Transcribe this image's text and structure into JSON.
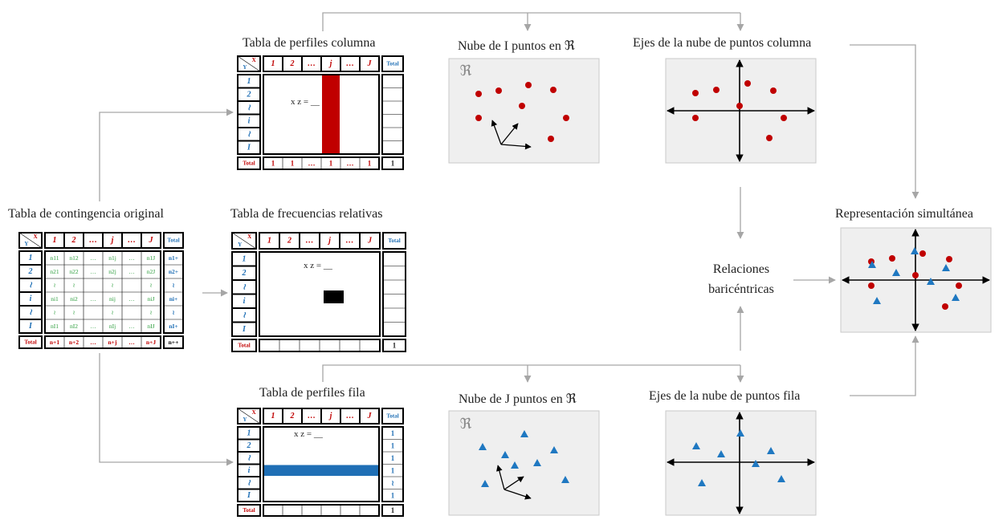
{
  "labels": {
    "tabla_perfiles_columna": "Tabla de perfiles columna",
    "nube_i": "Nube de I puntos en ℜ",
    "ejes_columna": "Ejes de la nube de puntos columna",
    "tabla_contingencia": "Tabla de contingencia original",
    "tabla_frecuencias": "Tabla de frecuencias relativas",
    "representacion": "Representación simultánea",
    "relaciones_1": "Relaciones",
    "relaciones_2": "baricéntricas",
    "tabla_perfiles_fila": "Tabla de perfiles fila",
    "nube_j": "Nube de J puntos en ℜ",
    "ejes_fila": "Ejes de la nube de puntos fila"
  },
  "table_common": {
    "x_letter": "X",
    "y_letter": "Y",
    "col_headers": [
      "1",
      "2",
      "…",
      "j",
      "…",
      "J"
    ],
    "row_headers": [
      "1",
      "2",
      "≀",
      "i",
      "≀",
      "I"
    ],
    "total_label": "Total",
    "formula": "x  z = __"
  },
  "contingency": {
    "cells": [
      [
        "n11",
        "n12",
        "…",
        "n1j",
        "…",
        "n1J"
      ],
      [
        "n21",
        "n22",
        "…",
        "n2j",
        "…",
        "n2J"
      ],
      [
        "≀",
        "≀",
        "",
        "≀",
        "",
        "≀"
      ],
      [
        "ni1",
        "ni2",
        "…",
        "nij",
        "…",
        "niJ"
      ],
      [
        "≀",
        "≀",
        "",
        "≀",
        "",
        "≀"
      ],
      [
        "nI1",
        "nI2",
        "…",
        "nIj",
        "…",
        "nIJ"
      ]
    ],
    "row_totals": [
      "n1+",
      "n2+",
      "≀",
      "ni+",
      "≀",
      "nI+"
    ],
    "col_totals": [
      "n+1",
      "n+2",
      "…",
      "n+j",
      "…",
      "n+J"
    ],
    "grand_total": "n++"
  },
  "col_profiles": {
    "col_totals": [
      "1",
      "1",
      "…",
      "1",
      "…",
      "1"
    ],
    "grand_total": "1"
  },
  "row_profiles": {
    "row_totals": [
      "1",
      "1",
      "1",
      "1",
      "≀",
      "1"
    ],
    "grand_total": "1"
  },
  "freq_table": {
    "grand_total": "1"
  },
  "scatter_glyph": "ℜ",
  "colors": {
    "red": "#c00000",
    "blue": "#1f78c1",
    "green": "#2e9e3e",
    "table_header_blue": "#1f6fb5",
    "panel_bg": "#efefef",
    "arrow": "#a6a6a6"
  }
}
